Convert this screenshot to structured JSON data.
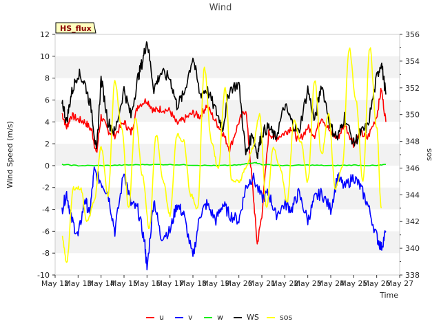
{
  "chart_data": {
    "type": "line",
    "title": "Wind",
    "badge": "HS_flux",
    "xlabel": "Time",
    "ylabel": "Wind Speed (m/s)",
    "y2label": "sos",
    "ylim": [
      -10,
      12
    ],
    "y2lim": [
      338,
      356
    ],
    "xlim": [
      12,
      27
    ],
    "x_ticks": [
      {
        "value": 12,
        "label": "May 12"
      },
      {
        "value": 13,
        "label": "May 13"
      },
      {
        "value": 14,
        "label": "May 14"
      },
      {
        "value": 15,
        "label": "May 15"
      },
      {
        "value": 16,
        "label": "May 16"
      },
      {
        "value": 17,
        "label": "May 17"
      },
      {
        "value": 18,
        "label": "May 18"
      },
      {
        "value": 19,
        "label": "May 19"
      },
      {
        "value": 20,
        "label": "May 20"
      },
      {
        "value": 21,
        "label": "May 21"
      },
      {
        "value": 22,
        "label": "May 22"
      },
      {
        "value": 23,
        "label": "May 23"
      },
      {
        "value": 24,
        "label": "May 24"
      },
      {
        "value": 25,
        "label": "May 25"
      },
      {
        "value": 26,
        "label": "May 26"
      },
      {
        "value": 27,
        "label": "May 27"
      }
    ],
    "y_ticks": [
      -10,
      -8,
      -6,
      -4,
      -2,
      0,
      2,
      4,
      6,
      8,
      10,
      12
    ],
    "y2_ticks": [
      338,
      340,
      342,
      344,
      346,
      348,
      350,
      352,
      354,
      356
    ],
    "grid": "horizontal bands",
    "legend_position": "bottom",
    "series": [
      {
        "name": "u",
        "color": "#ff0000",
        "axis": "left",
        "x": [
          12.3,
          12.5,
          12.7,
          13.0,
          13.3,
          13.6,
          13.8,
          14.0,
          14.3,
          14.6,
          15.0,
          15.3,
          15.6,
          16.0,
          16.3,
          16.6,
          17.0,
          17.3,
          17.6,
          18.0,
          18.3,
          18.6,
          19.0,
          19.3,
          19.6,
          20.0,
          20.3,
          20.6,
          20.8,
          21.0,
          21.3,
          21.6,
          22.0,
          22.3,
          22.6,
          23.0,
          23.3,
          23.6,
          24.0,
          24.3,
          24.6,
          25.0,
          25.3,
          25.6,
          26.0,
          26.2,
          26.4
        ],
        "values": [
          4.8,
          3.5,
          4.6,
          4.2,
          4.0,
          3.2,
          1.0,
          4.5,
          3.2,
          2.8,
          4.0,
          3.0,
          5.5,
          6.0,
          5.0,
          5.2,
          5.0,
          3.8,
          4.2,
          4.8,
          4.5,
          5.5,
          4.0,
          3.0,
          1.5,
          4.0,
          5.2,
          -2.0,
          -7.2,
          -4.5,
          3.0,
          2.5,
          3.0,
          3.5,
          2.2,
          3.5,
          2.8,
          4.5,
          3.0,
          2.5,
          3.8,
          2.0,
          3.0,
          2.5,
          4.5,
          7.0,
          4.0
        ]
      },
      {
        "name": "v",
        "color": "#0000ff",
        "axis": "left",
        "x": [
          12.3,
          12.5,
          12.7,
          13.0,
          13.3,
          13.5,
          13.7,
          14.0,
          14.3,
          14.6,
          15.0,
          15.3,
          15.6,
          15.9,
          16.0,
          16.3,
          16.6,
          17.0,
          17.3,
          17.6,
          18.0,
          18.3,
          18.6,
          19.0,
          19.3,
          19.6,
          20.0,
          20.3,
          20.6,
          21.0,
          21.3,
          21.6,
          22.0,
          22.3,
          22.6,
          23.0,
          23.3,
          23.6,
          24.0,
          24.3,
          24.6,
          25.0,
          25.3,
          25.6,
          26.0,
          26.2,
          26.4
        ],
        "values": [
          -4.0,
          -2.5,
          -4.8,
          -6.5,
          -3.0,
          -4.5,
          -0.5,
          -1.5,
          -2.5,
          -6.0,
          -0.5,
          -3.5,
          -4.0,
          -7.0,
          -9.5,
          -3.0,
          -6.5,
          -6.0,
          -3.5,
          -4.5,
          -8.5,
          -4.5,
          -3.5,
          -5.0,
          -3.5,
          -4.5,
          -5.0,
          -2.0,
          -1.0,
          -3.0,
          -2.5,
          -4.5,
          -3.5,
          -4.0,
          -2.5,
          -5.0,
          -3.0,
          -2.5,
          -4.0,
          -1.0,
          -2.0,
          -1.0,
          -2.0,
          -3.5,
          -6.5,
          -7.5,
          -6.0
        ]
      },
      {
        "name": "w",
        "color": "#00ee00",
        "axis": "left",
        "x": [
          12.3,
          13.0,
          14.0,
          15.0,
          16.0,
          17.0,
          18.0,
          19.0,
          20.0,
          20.7,
          21.0,
          22.0,
          23.0,
          24.0,
          25.0,
          26.0,
          26.4
        ],
        "values": [
          0.1,
          0.0,
          0.0,
          0.05,
          0.1,
          0.1,
          0.05,
          0.0,
          0.05,
          0.3,
          0.1,
          0.0,
          0.05,
          0.0,
          0.05,
          0.0,
          0.1
        ]
      },
      {
        "name": "WS",
        "color": "#000000",
        "axis": "left",
        "x": [
          12.3,
          12.5,
          12.7,
          13.0,
          13.3,
          13.6,
          13.8,
          14.0,
          14.3,
          14.6,
          15.0,
          15.3,
          15.6,
          15.8,
          16.0,
          16.3,
          16.6,
          17.0,
          17.3,
          17.6,
          18.0,
          18.3,
          18.6,
          19.0,
          19.3,
          19.6,
          20.0,
          20.3,
          20.6,
          20.8,
          21.0,
          21.3,
          21.6,
          22.0,
          22.3,
          22.6,
          23.0,
          23.3,
          23.6,
          24.0,
          24.3,
          24.6,
          25.0,
          25.3,
          25.6,
          26.0,
          26.2,
          26.4
        ],
        "values": [
          6.0,
          4.0,
          6.5,
          8.5,
          7.5,
          5.0,
          1.0,
          8.0,
          4.0,
          3.0,
          7.0,
          4.5,
          8.0,
          9.5,
          11.5,
          7.0,
          8.5,
          8.0,
          5.5,
          6.5,
          10.0,
          6.5,
          7.0,
          5.0,
          3.5,
          7.0,
          7.5,
          1.0,
          3.0,
          1.0,
          3.0,
          3.5,
          2.5,
          5.5,
          4.0,
          3.0,
          7.0,
          4.0,
          7.5,
          3.5,
          2.5,
          4.5,
          2.0,
          3.0,
          3.5,
          8.0,
          9.5,
          6.5
        ]
      },
      {
        "name": "sos",
        "color": "#ffff00",
        "axis": "right",
        "x": [
          12.3,
          12.5,
          12.8,
          13.1,
          13.4,
          13.7,
          14.0,
          14.3,
          14.6,
          14.9,
          15.2,
          15.5,
          15.8,
          16.1,
          16.4,
          16.7,
          17.0,
          17.3,
          17.6,
          17.9,
          18.2,
          18.5,
          18.8,
          19.1,
          19.4,
          19.7,
          20.0,
          20.3,
          20.6,
          20.9,
          21.2,
          21.5,
          21.8,
          22.1,
          22.4,
          22.7,
          23.0,
          23.3,
          23.6,
          23.9,
          24.2,
          24.5,
          24.8,
          25.1,
          25.4,
          25.7,
          26.0,
          26.2
        ],
        "values": [
          340.8,
          339.0,
          344.5,
          344.5,
          342.0,
          343.5,
          347.5,
          344.0,
          352.5,
          349.0,
          343.0,
          349.8,
          345.5,
          341.5,
          348.5,
          345.0,
          342.5,
          348.5,
          348.0,
          344.0,
          343.0,
          353.5,
          348.0,
          346.0,
          352.0,
          345.0,
          345.0,
          346.0,
          347.5,
          350.0,
          343.0,
          347.5,
          346.0,
          343.5,
          349.5,
          348.0,
          345.0,
          352.5,
          347.0,
          350.0,
          344.5,
          346.0,
          355.0,
          351.0,
          345.0,
          355.0,
          349.0,
          343.0
        ]
      }
    ]
  }
}
